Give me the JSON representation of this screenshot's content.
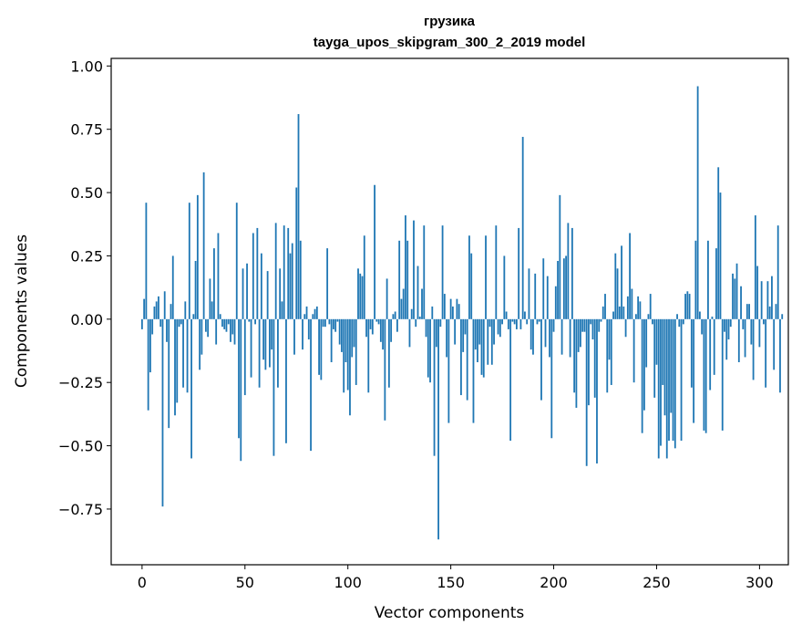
{
  "chart_data": {
    "type": "bar",
    "title": "грузика",
    "subtitle": "tayga_upos_skipgram_300_2_2019 model",
    "xlabel": "Vector components",
    "ylabel": "Components values",
    "xlim": [
      -15,
      314
    ],
    "ylim": [
      -0.97,
      1.03
    ],
    "xticks": [
      0,
      50,
      100,
      150,
      200,
      250,
      300
    ],
    "yticks": [
      -0.75,
      -0.5,
      -0.25,
      0.0,
      0.25,
      0.5,
      0.75,
      1.0
    ],
    "xtick_labels": [
      "0",
      "50",
      "100",
      "150",
      "200",
      "250",
      "300"
    ],
    "ytick_labels": [
      "−0.75",
      "−0.50",
      "−0.25",
      "0.00",
      "0.25",
      "0.50",
      "0.75",
      "1.00"
    ],
    "grid": false,
    "bar_color": "#1f77b4",
    "values": [
      -0.04,
      0.08,
      0.46,
      -0.36,
      -0.21,
      -0.06,
      0.05,
      0.07,
      0.09,
      -0.03,
      -0.74,
      0.11,
      -0.09,
      -0.43,
      0.06,
      0.25,
      -0.38,
      -0.33,
      -0.03,
      -0.02,
      -0.27,
      0.07,
      -0.29,
      0.46,
      -0.55,
      0.02,
      0.23,
      0.49,
      -0.2,
      -0.14,
      0.58,
      -0.05,
      -0.07,
      0.16,
      0.07,
      0.28,
      -0.1,
      0.34,
      0.02,
      -0.03,
      -0.04,
      -0.05,
      -0.02,
      -0.09,
      -0.06,
      -0.1,
      0.46,
      -0.47,
      -0.56,
      0.2,
      -0.3,
      0.22,
      -0.01,
      -0.23,
      0.34,
      -0.02,
      0.36,
      -0.27,
      0.26,
      -0.16,
      -0.2,
      0.19,
      -0.19,
      -0.12,
      -0.54,
      0.38,
      -0.27,
      0.2,
      0.07,
      0.37,
      -0.49,
      0.36,
      0.26,
      0.3,
      -0.14,
      0.52,
      0.81,
      0.31,
      -0.12,
      0.02,
      0.05,
      -0.08,
      -0.52,
      0.02,
      0.04,
      0.05,
      -0.22,
      -0.24,
      -0.03,
      -0.03,
      0.28,
      -0.02,
      -0.17,
      -0.04,
      -0.05,
      -0.01,
      -0.1,
      -0.13,
      -0.29,
      -0.17,
      -0.28,
      -0.38,
      -0.15,
      -0.11,
      -0.26,
      0.2,
      0.18,
      0.17,
      0.33,
      -0.07,
      -0.29,
      -0.04,
      -0.06,
      0.53,
      -0.01,
      -0.02,
      -0.09,
      -0.12,
      -0.4,
      0.16,
      -0.27,
      -0.09,
      0.02,
      0.03,
      -0.05,
      0.31,
      0.08,
      0.12,
      0.41,
      0.31,
      -0.11,
      0.04,
      0.39,
      -0.03,
      0.21,
      0.01,
      0.12,
      0.37,
      -0.07,
      -0.23,
      -0.25,
      0.05,
      -0.54,
      -0.11,
      -0.87,
      -0.03,
      0.37,
      0.1,
      -0.15,
      -0.41,
      0.08,
      0.05,
      -0.1,
      0.08,
      0.06,
      -0.3,
      -0.13,
      -0.06,
      -0.32,
      0.33,
      0.26,
      -0.41,
      -0.12,
      -0.17,
      -0.1,
      -0.22,
      -0.23,
      0.33,
      -0.18,
      -0.03,
      -0.18,
      -0.1,
      0.37,
      -0.06,
      -0.07,
      -0.02,
      0.25,
      0.03,
      -0.04,
      -0.48,
      -0.01,
      -0.02,
      -0.04,
      0.36,
      -0.04,
      0.72,
      0.03,
      -0.02,
      0.2,
      -0.12,
      -0.14,
      0.18,
      -0.02,
      -0.01,
      -0.32,
      0.24,
      -0.11,
      0.17,
      -0.15,
      -0.47,
      -0.05,
      0.13,
      0.23,
      0.49,
      -0.14,
      0.24,
      0.25,
      0.38,
      -0.15,
      0.36,
      -0.29,
      -0.35,
      -0.13,
      -0.11,
      -0.05,
      -0.05,
      -0.58,
      -0.34,
      -0.02,
      -0.08,
      -0.31,
      -0.57,
      -0.05,
      -0.01,
      0.05,
      0.1,
      -0.29,
      -0.16,
      -0.26,
      0.03,
      0.26,
      0.2,
      0.05,
      0.29,
      0.05,
      -0.07,
      0.09,
      0.34,
      0.12,
      -0.25,
      0.02,
      0.09,
      0.07,
      -0.45,
      -0.36,
      -0.19,
      0.02,
      0.1,
      -0.02,
      -0.31,
      -0.18,
      -0.55,
      -0.5,
      -0.26,
      -0.38,
      -0.55,
      -0.48,
      -0.37,
      -0.48,
      -0.51,
      0.02,
      -0.03,
      -0.48,
      -0.02,
      0.1,
      0.11,
      0.1,
      -0.27,
      -0.41,
      0.31,
      0.92,
      0.03,
      -0.06,
      -0.44,
      -0.45,
      0.31,
      -0.28,
      0.01,
      -0.22,
      0.28,
      0.6,
      0.5,
      -0.44,
      -0.05,
      -0.16,
      -0.08,
      -0.03,
      0.18,
      0.16,
      0.22,
      -0.17,
      0.13,
      -0.04,
      -0.15,
      0.06,
      0.06,
      -0.1,
      -0.24,
      0.41,
      0.21,
      -0.11,
      0.15,
      -0.02,
      -0.27,
      0.15,
      0.05,
      0.17,
      -0.2,
      0.06,
      0.37,
      -0.29,
      0.02
    ]
  }
}
